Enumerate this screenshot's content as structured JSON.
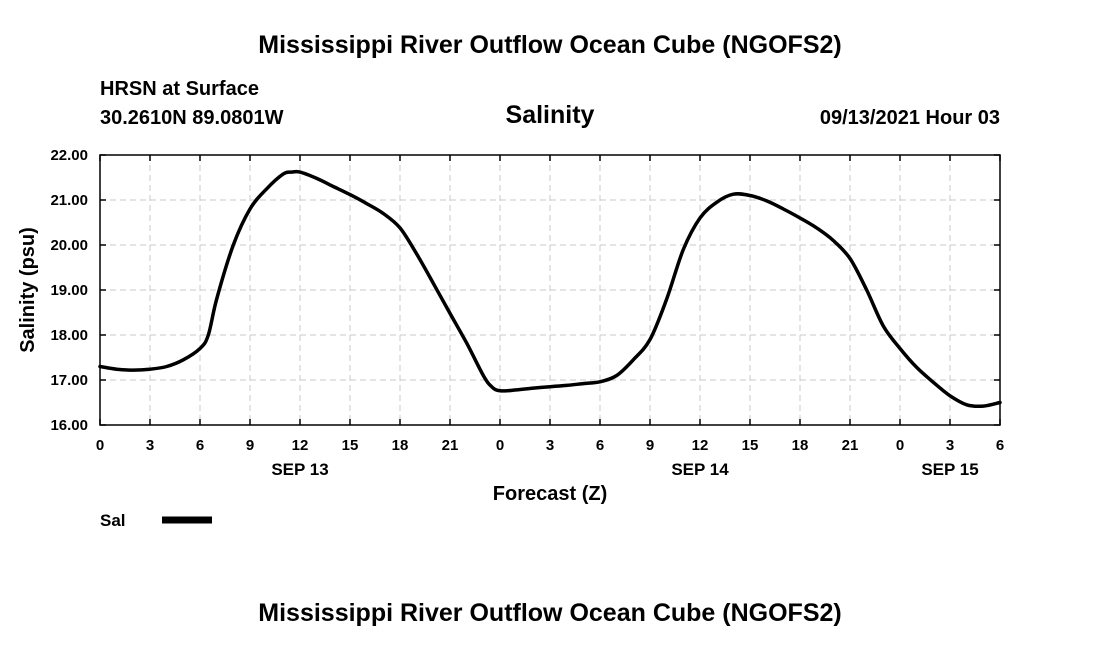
{
  "header": {
    "title_top": "Mississippi River Outflow Ocean Cube (NGOFS2)",
    "station": "HRSN at Surface",
    "coords": "30.2610N  89.0801W",
    "variable": "Salinity",
    "datetime": "09/13/2021 Hour 03"
  },
  "footer": {
    "title_bottom": "Mississippi River Outflow Ocean Cube (NGOFS2)"
  },
  "colors": {
    "line": "#000000",
    "grid": "#c8c8c8",
    "background": "#ffffff"
  },
  "chart_data": {
    "type": "line",
    "title": "Salinity",
    "xlabel": "Forecast (Z)",
    "ylabel": "Salinity (psu)",
    "xlim": [
      0,
      54
    ],
    "ylim": [
      16,
      22
    ],
    "y_ticks": [
      16,
      17,
      18,
      19,
      20,
      21,
      22
    ],
    "y_tick_labels": [
      "16.00",
      "17.00",
      "18.00",
      "19.00",
      "20.00",
      "21.00",
      "22.00"
    ],
    "x_ticks": [
      0,
      3,
      6,
      9,
      12,
      15,
      18,
      21,
      24,
      27,
      30,
      33,
      36,
      39,
      42,
      45,
      48,
      51,
      54
    ],
    "x_tick_labels": [
      "0",
      "3",
      "6",
      "9",
      "12",
      "15",
      "18",
      "21",
      "0",
      "3",
      "6",
      "9",
      "12",
      "15",
      "18",
      "21",
      "0",
      "3",
      "6"
    ],
    "date_labels": [
      {
        "x": 12,
        "label": "SEP 13"
      },
      {
        "x": 36,
        "label": "SEP 14"
      },
      {
        "x": 51,
        "label": "SEP 15"
      }
    ],
    "grid": true,
    "legend": {
      "position": "bottom-left",
      "entries": [
        {
          "label": "Sal"
        }
      ]
    },
    "series": [
      {
        "name": "Sal",
        "x": [
          0,
          1,
          2,
          3,
          4,
          5,
          6,
          6.5,
          7,
          8,
          9,
          10,
          11,
          11.5,
          12,
          13,
          14,
          15,
          16,
          17,
          18,
          19,
          20,
          21,
          22,
          23,
          23.5,
          24,
          25,
          26,
          27,
          28,
          29,
          30,
          31,
          32,
          33,
          34,
          35,
          36,
          37,
          38,
          39,
          40,
          41,
          42,
          43,
          44,
          45,
          46,
          47,
          48,
          49,
          50,
          51,
          52,
          53,
          54
        ],
        "values": [
          17.3,
          17.24,
          17.22,
          17.24,
          17.3,
          17.45,
          17.7,
          18.0,
          18.8,
          20.0,
          20.8,
          21.25,
          21.58,
          21.62,
          21.62,
          21.48,
          21.3,
          21.12,
          20.92,
          20.7,
          20.38,
          19.8,
          19.15,
          18.48,
          17.82,
          17.1,
          16.85,
          16.76,
          16.78,
          16.82,
          16.85,
          16.88,
          16.92,
          16.96,
          17.1,
          17.45,
          17.9,
          18.8,
          19.9,
          20.6,
          20.95,
          21.13,
          21.1,
          20.98,
          20.8,
          20.6,
          20.38,
          20.1,
          19.7,
          19.0,
          18.2,
          17.7,
          17.28,
          16.95,
          16.65,
          16.45,
          16.42,
          16.5
        ]
      }
    ]
  }
}
